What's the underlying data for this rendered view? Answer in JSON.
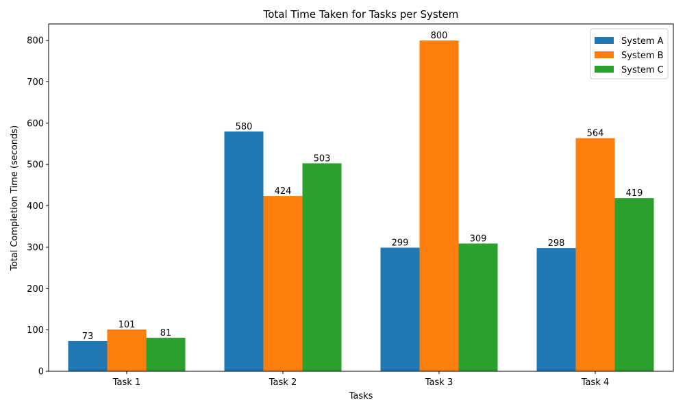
{
  "chart_data": {
    "type": "bar",
    "title": "Total Time Taken for Tasks per System",
    "xlabel": "Tasks",
    "ylabel": "Total Completion Time (seconds)",
    "categories": [
      "Task 1",
      "Task 2",
      "Task 3",
      "Task 4"
    ],
    "series": [
      {
        "name": "System A",
        "color": "#1f77b4",
        "values": [
          73,
          580,
          299,
          298
        ]
      },
      {
        "name": "System B",
        "color": "#ff7f0e",
        "values": [
          101,
          424,
          800,
          564
        ]
      },
      {
        "name": "System C",
        "color": "#2ca02c",
        "values": [
          81,
          503,
          309,
          419
        ]
      }
    ],
    "ylim": [
      0,
      840
    ],
    "yticks": [
      0,
      100,
      200,
      300,
      400,
      500,
      600,
      700,
      800
    ],
    "grid": false,
    "legend_position": "top-right",
    "data_labels": true
  }
}
